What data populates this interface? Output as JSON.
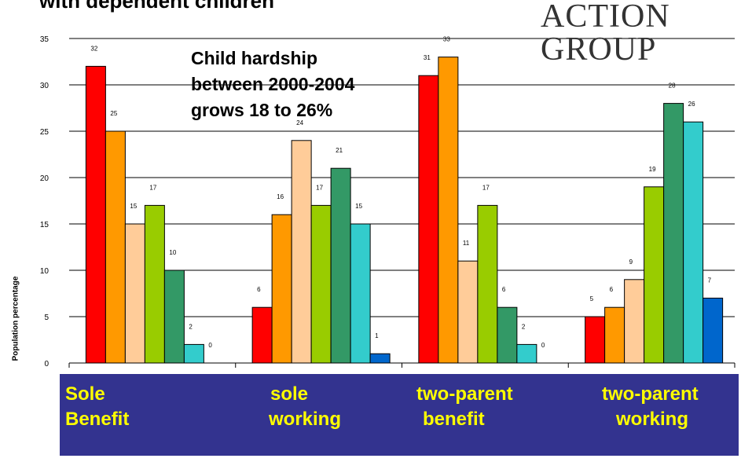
{
  "header": {
    "title_fragment": "with dependent children"
  },
  "logo": {
    "line1": "ACTION",
    "line2": "GROUP"
  },
  "annotation": "Child hardship between 2000-2004 grows 18 to 26%",
  "colors": [
    "#ff0000",
    "#ff9900",
    "#ffcc99",
    "#99cc00",
    "#339966",
    "#33cccc",
    "#0066cc"
  ],
  "chart_data": {
    "type": "bar",
    "categories": [
      "Sole Benefit",
      "sole working",
      "two-parent benefit",
      "two-parent working"
    ],
    "category_lines": [
      [
        "Sole",
        "Benefit"
      ],
      [
        "sole",
        "working"
      ],
      [
        "two-parent",
        "benefit"
      ],
      [
        "two-parent",
        "working"
      ]
    ],
    "series_values": [
      [
        32,
        25,
        15,
        17,
        10,
        2,
        0
      ],
      [
        6,
        16,
        24,
        17,
        21,
        15,
        1
      ],
      [
        31,
        33,
        11,
        17,
        6,
        2,
        0
      ],
      [
        5,
        6,
        9,
        19,
        28,
        26,
        7
      ]
    ],
    "ylabel": "Population percentage",
    "ylim": [
      0,
      35
    ],
    "yticks": [
      0,
      5,
      10,
      15,
      20,
      25,
      30,
      35
    ],
    "grid": true
  }
}
